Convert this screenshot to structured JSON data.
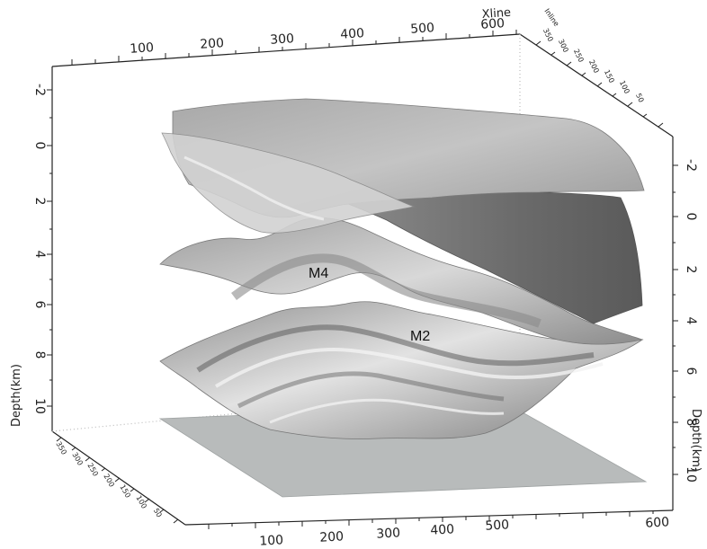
{
  "figure": {
    "xline_axis": {
      "title": "Xline",
      "ticks": [
        "100",
        "200",
        "300",
        "400",
        "500",
        "600"
      ]
    },
    "inline_axis": {
      "title": "Inline",
      "ticks_top": [
        "350",
        "300",
        "250",
        "200",
        "150",
        "100",
        "50"
      ],
      "ticks_bottom": [
        "350",
        "300",
        "250",
        "200",
        "150",
        "100",
        "50"
      ]
    },
    "depth_axis": {
      "title": "Depth(km)",
      "ticks_left": [
        "-2",
        "0",
        "2",
        "4",
        "6",
        "8",
        "10"
      ],
      "ticks_right": [
        "-2",
        "0",
        "2",
        "4",
        "6",
        "8",
        "10"
      ]
    },
    "bottom_xline_ticks": [
      "100",
      "200",
      "300",
      "400",
      "500",
      "600"
    ],
    "horizon_labels": {
      "m4": "M4",
      "m2": "M2"
    },
    "colors": {
      "surface_light": "#c9c9c9",
      "surface_mid": "#a9a9a9",
      "surface_dark": "#6e6e6e",
      "flat_plane": "#b8bbbb",
      "axis": "#222222"
    }
  }
}
